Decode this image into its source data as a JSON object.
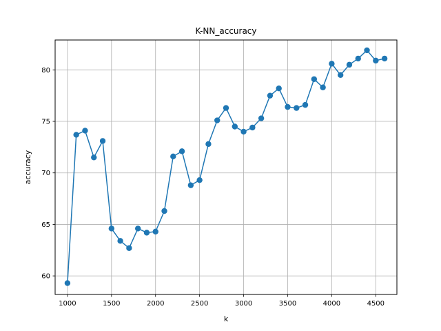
{
  "chart_data": {
    "type": "line",
    "title": "K-NN_accuracy",
    "xlabel": "k",
    "ylabel": "accuracy",
    "xlim": [
      860,
      4740
    ],
    "ylim": [
      58.2,
      82.9
    ],
    "xticks": [
      1000,
      1500,
      2000,
      2500,
      3000,
      3500,
      4000,
      4500
    ],
    "yticks": [
      60,
      65,
      70,
      75,
      80
    ],
    "grid": true,
    "series": [
      {
        "color": "#1f77b4",
        "marker": "circle",
        "x": [
          1000,
          1100,
          1200,
          1300,
          1400,
          1500,
          1600,
          1700,
          1800,
          1900,
          2000,
          2100,
          2200,
          2300,
          2400,
          2500,
          2600,
          2700,
          2800,
          2900,
          3000,
          3100,
          3200,
          3300,
          3400,
          3500,
          3600,
          3700,
          3800,
          3900,
          4000,
          4100,
          4200,
          4300,
          4400,
          4500,
          4600
        ],
        "y": [
          59.3,
          73.7,
          74.1,
          71.5,
          73.1,
          64.6,
          63.4,
          62.7,
          64.6,
          64.2,
          64.3,
          66.3,
          71.6,
          72.1,
          68.8,
          69.3,
          72.8,
          75.1,
          76.3,
          74.5,
          74.0,
          74.4,
          75.3,
          77.5,
          78.2,
          76.4,
          76.3,
          76.6,
          79.1,
          78.3,
          80.6,
          79.5,
          80.5,
          81.1,
          81.9,
          80.9,
          81.1
        ]
      }
    ]
  }
}
